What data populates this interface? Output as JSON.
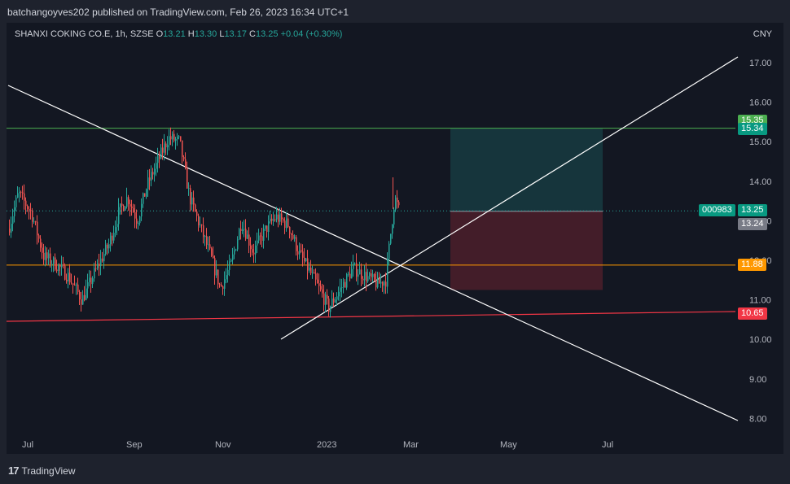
{
  "header": {
    "publisher_text": "batchangoyves202 published on TradingView.com, Feb 26, 2023 16:34 UTC+1"
  },
  "legend": {
    "symbol": "SHANXI COKING CO.E, 1h, SZSE",
    "o_label": "O",
    "o_value": "13.21",
    "h_label": "H",
    "h_value": "13.30",
    "l_label": "L",
    "l_value": "13.17",
    "c_label": "C",
    "c_value": "13.25",
    "change": "+0.04 (+0.30%)"
  },
  "currency": "CNY",
  "footer": {
    "brand": "TradingView",
    "mark": "17"
  },
  "colors": {
    "bg": "#131722",
    "up": "#26a69a",
    "down": "#ef5350",
    "green_line": "#4caf50",
    "orange_line": "#ff9800",
    "red_line": "#f23645",
    "trend": "#ffffff"
  },
  "chart_data": {
    "type": "candlestick",
    "y_axis": {
      "ticks": [
        "17.00",
        "16.00",
        "15.00",
        "14.00",
        "13.00",
        "12.00",
        "11.00",
        "10.00",
        "9.00",
        "8.00"
      ],
      "min": 7.8,
      "max": 17.2
    },
    "x_axis": {
      "ticks": [
        "Jul",
        "Sep",
        "Nov",
        "2023",
        "Mar",
        "May",
        "Jul"
      ]
    },
    "horizontal_lines": [
      {
        "name": "target",
        "price": 15.34,
        "color": "#4caf50"
      },
      {
        "name": "entry-level",
        "price": 11.88,
        "color": "#ff9800"
      }
    ],
    "price_labels": [
      {
        "name": "target-high-label",
        "text": "15.35",
        "price": 15.35,
        "color": "#4caf50"
      },
      {
        "name": "target-label",
        "text": "15.34",
        "price": 15.34,
        "color": "#089981"
      },
      {
        "name": "symbol-label",
        "text": "000983",
        "price": 13.25,
        "color": "#089981"
      },
      {
        "name": "last-price-label",
        "text": "13.25",
        "price": 13.25,
        "color": "#089981"
      },
      {
        "name": "entry-label",
        "text": "13.24",
        "price": 13.24,
        "color": "#787b86"
      },
      {
        "name": "support-label",
        "text": "11.88",
        "price": 11.88,
        "color": "#ff9800"
      },
      {
        "name": "stop-label",
        "text": "10.65",
        "price": 10.65,
        "color": "#f23645"
      }
    ],
    "position": {
      "entry": 13.24,
      "target": 15.34,
      "stop": 10.65
    },
    "series_summary": {
      "open": 13.21,
      "high": 13.3,
      "low": 13.17,
      "close": 13.25,
      "change": 0.04,
      "change_pct": 0.3
    }
  }
}
